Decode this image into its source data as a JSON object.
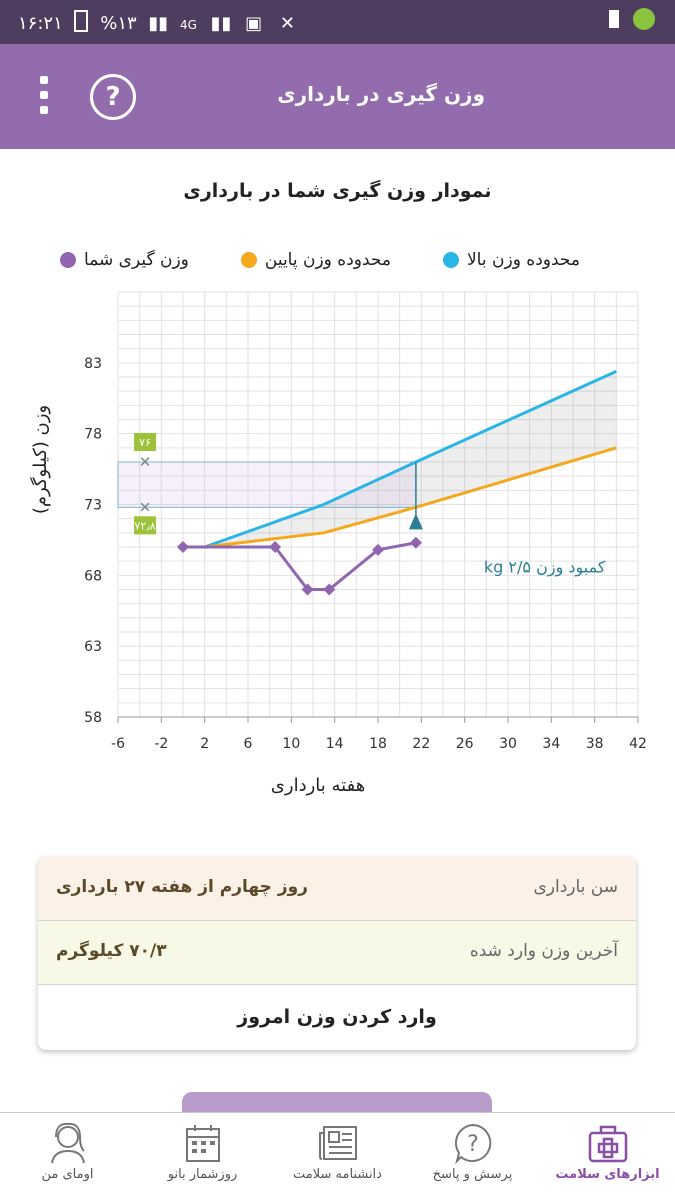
{
  "status": {
    "time": "۱۶:۲۱",
    "battery": "%۱۳",
    "network": "4G"
  },
  "appbar": {
    "title": "وزن گیری در بارداری",
    "help_icon": "question-circle-icon",
    "menu_icon": "kebab-menu-icon"
  },
  "chart_title": "نمودار وزن گیری شما در بارداری",
  "legend": [
    {
      "label": "محدوده وزن بالا",
      "color": "#29b6e6"
    },
    {
      "label": "محدوده وزن پایین",
      "color": "#f4a81d"
    },
    {
      "label": "وزن گیری شما",
      "color": "#9166b0"
    }
  ],
  "chart_data": {
    "type": "line",
    "xlabel": "هفته بارداری",
    "ylabel": "وزن (کیلوگرم)",
    "xlim": [
      -6,
      42
    ],
    "ylim": [
      58,
      88
    ],
    "xticks": [
      -6,
      -2,
      2,
      6,
      10,
      14,
      18,
      22,
      26,
      30,
      34,
      38,
      42
    ],
    "yticks": [
      58,
      63,
      68,
      73,
      78,
      83
    ],
    "series": [
      {
        "name": "محدوده وزن بالا",
        "color": "#29b6e6",
        "x": [
          2,
          13,
          21.5,
          40
        ],
        "y": [
          70,
          73,
          76,
          82.4
        ]
      },
      {
        "name": "محدوده وزن پایین",
        "color": "#f4a81d",
        "x": [
          2,
          13,
          21.5,
          40
        ],
        "y": [
          70,
          71,
          72.8,
          77
        ]
      },
      {
        "name": "وزن گیری شما",
        "color": "#9166b0",
        "x": [
          0,
          8.5,
          11.5,
          13.5,
          18,
          21.5
        ],
        "y": [
          70,
          70,
          67,
          67,
          69.8,
          70.3
        ]
      }
    ],
    "markers": [
      {
        "label": "۷۶",
        "y": 76
      },
      {
        "label": "۷۲٫۸",
        "y": 72.8
      }
    ],
    "annotation": "کمبود وزن ۲/۵ kg"
  },
  "info": {
    "age_label": "سن بارداری",
    "age_value": "روز چهارم از هفته ۲۷ بارداری",
    "weight_label": "آخرین وزن وارد شده",
    "weight_value": "۷۰/۳ کیلوگرم",
    "action": "وارد کردن وزن امروز"
  },
  "nav": [
    {
      "label": "اومای من",
      "icon": "avatar-icon",
      "active": false
    },
    {
      "label": "روزشمار بانو",
      "icon": "calendar-icon",
      "active": false
    },
    {
      "label": "دانشنامه سلامت",
      "icon": "newspaper-icon",
      "active": false
    },
    {
      "label": "پرسش و پاسخ",
      "icon": "question-bubble-icon",
      "active": false
    },
    {
      "label": "ابزارهای سلامت",
      "icon": "medical-kit-icon",
      "active": true
    }
  ]
}
